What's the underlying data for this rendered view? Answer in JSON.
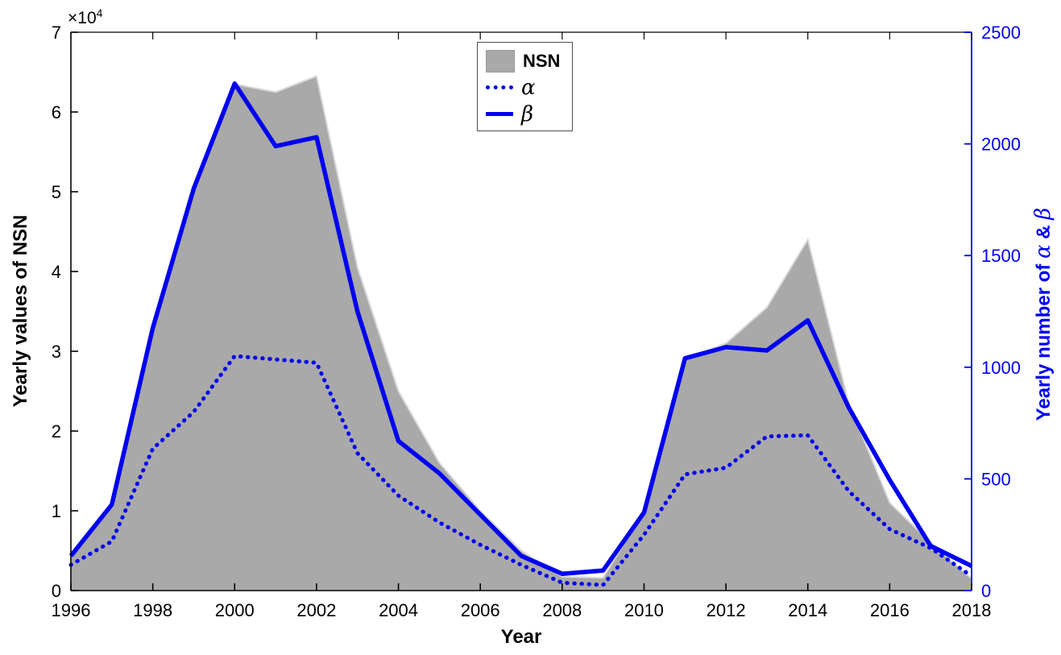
{
  "figure": {
    "exponent_base": "×10",
    "exponent_power": "4",
    "xlabel": "Year",
    "ylabel_left": "Yearly values of NSN",
    "ylabel_right_prefix": "Yearly number of ",
    "ylabel_right_alpha": "α",
    "ylabel_right_amp": " & ",
    "ylabel_right_beta": "β"
  },
  "legend": {
    "items": [
      {
        "label": "NSN",
        "swatch": "area"
      },
      {
        "label": "α",
        "swatch": "dotted"
      },
      {
        "label": "β",
        "swatch": "solid"
      }
    ]
  },
  "colors": {
    "gray_fill": "#a9a9a9",
    "area_edge": "#d8d8d8",
    "blue": "#0000f0",
    "axis_black": "#000000"
  },
  "chart_data": {
    "type": "combo",
    "x": [
      1996,
      1997,
      1998,
      1999,
      2000,
      2001,
      2002,
      2003,
      2004,
      2005,
      2006,
      2007,
      2008,
      2009,
      2010,
      2011,
      2012,
      2013,
      2014,
      2015,
      2016,
      2017,
      2018
    ],
    "series": [
      {
        "name": "NSN",
        "type": "area",
        "axis": "left",
        "values": [
          4500,
          11000,
          32500,
          50000,
          63500,
          62500,
          64500,
          40500,
          25000,
          16000,
          10000,
          5000,
          1750,
          1600,
          10000,
          29000,
          31000,
          35500,
          44000,
          23500,
          11000,
          6000,
          1500
        ]
      },
      {
        "name": "α",
        "type": "line-dotted",
        "axis": "right",
        "values": [
          115,
          220,
          635,
          800,
          1050,
          1035,
          1020,
          615,
          425,
          305,
          205,
          115,
          35,
          25,
          250,
          520,
          550,
          690,
          695,
          445,
          275,
          190,
          65
        ]
      },
      {
        "name": "β",
        "type": "line-solid",
        "axis": "right",
        "values": [
          155,
          385,
          1175,
          1800,
          2270,
          1990,
          2030,
          1250,
          670,
          525,
          340,
          155,
          75,
          90,
          350,
          1040,
          1090,
          1075,
          1210,
          820,
          495,
          200,
          110
        ]
      }
    ],
    "x_range": [
      1996,
      2018
    ],
    "x_ticks": [
      1996,
      1998,
      2000,
      2002,
      2004,
      2006,
      2008,
      2010,
      2012,
      2014,
      2016,
      2018
    ],
    "left_axis": {
      "label": "Yearly values of NSN",
      "range": [
        0,
        70000
      ],
      "ticks": [
        0,
        1,
        2,
        3,
        4,
        5,
        6,
        7
      ],
      "tick_scale": 10000,
      "exponent_text": "×10⁴"
    },
    "right_axis": {
      "label": "Yearly number of α & β",
      "range": [
        0,
        2500
      ],
      "ticks": [
        0,
        500,
        1000,
        1500,
        2000,
        2500
      ]
    },
    "grid": false,
    "legend_position": "upper-center-left",
    "title": ""
  }
}
